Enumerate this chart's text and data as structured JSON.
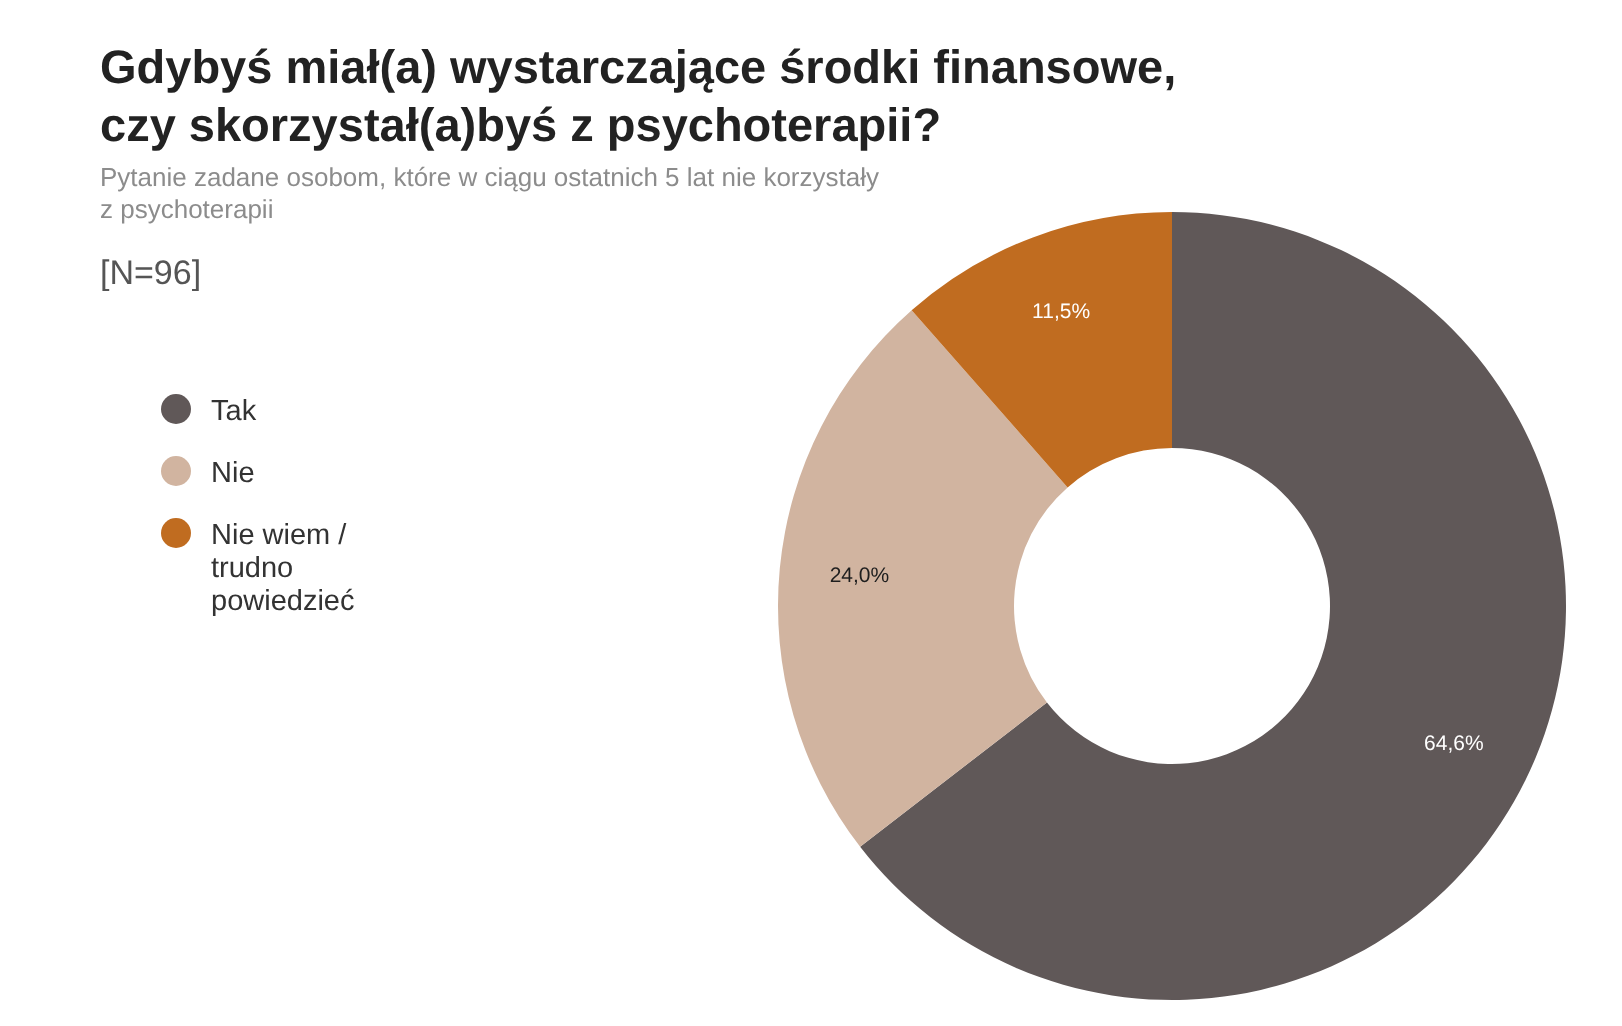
{
  "chart_data": {
    "type": "donut",
    "title": "Gdybyś miał(a) wystarczające środki finansowe, czy skorzystał(a)byś z psychoterapii?",
    "subtitle": "Pytanie zadane osobom, które w ciągu ostatnich 5 lat nie korzystały z psychoterapii",
    "annotations": [
      "[N=96]"
    ],
    "categories": [
      "Tak",
      "Nie",
      "Nie wiem / trudno powiedzieć"
    ],
    "values": [
      64.6,
      24.0,
      11.5
    ],
    "colors": [
      "#605858",
      "#d1b4a0",
      "#c06c20"
    ],
    "value_labels": [
      "64,6%",
      "24,0%",
      "11,5%"
    ],
    "legend": "left"
  }
}
